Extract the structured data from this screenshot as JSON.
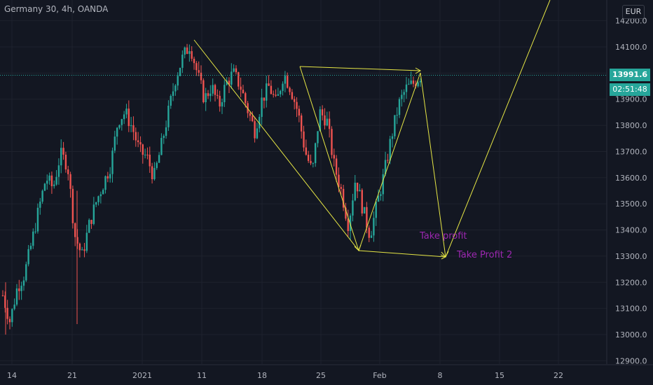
{
  "header": {
    "symbol_title": "Germany 30, 4h, OANDA",
    "currency": "EUR"
  },
  "price_scale": {
    "last_price": "13991.6",
    "countdown": "02:51:48"
  },
  "annotations": {
    "take_profit": "Take profit",
    "take_profit_2": "Take Profit 2"
  },
  "colors": {
    "background": "#131722",
    "up": "#26a69a",
    "down": "#ef5350",
    "drawing": "#e6e645",
    "text_purple": "#9c27b0",
    "axis_text": "#b2b5be",
    "last_price_line": "#26a69a"
  },
  "chart_data": {
    "type": "candlestick",
    "instrument": "Germany 30",
    "timeframe": "4h",
    "source": "OANDA",
    "y_ticks": [
      12900,
      13000,
      13100,
      13200,
      13300,
      13400,
      13500,
      13600,
      13700,
      13800,
      13900,
      14000,
      14100,
      14200
    ],
    "y_tick_labels": [
      "12900.0",
      "13000.0",
      "13100.0",
      "13200.0",
      "13300.0",
      "13400.0",
      "13500.0",
      "13600.0",
      "13700.0",
      "13800.0",
      "13900.0",
      "14000.0",
      "14100.0",
      "14200.0"
    ],
    "x_tick_labels": [
      "14",
      "21",
      "2021",
      "11",
      "18",
      "25",
      "Feb",
      "8",
      "15",
      "22"
    ],
    "ylim": [
      12890,
      14230
    ],
    "last_price": 13991.6,
    "path_close_points": [
      13150,
      13050,
      13180,
      13230,
      13350,
      13480,
      13600,
      13560,
      13690,
      13650,
      13380,
      13300,
      13420,
      13510,
      13580,
      13650,
      13820,
      13850,
      13790,
      13700,
      13680,
      13600,
      13720,
      13850,
      13980,
      14060,
      14110,
      14000,
      13900,
      13950,
      13870,
      13960,
      14000,
      13950,
      13860,
      13780,
      13900,
      13950,
      13880,
      14000,
      13940,
      13850,
      13700,
      13620,
      13850,
      13820,
      13650,
      13550,
      13420,
      13600,
      13480,
      13380,
      13500,
      13620,
      13760,
      13880,
      13940,
      13960,
      13990
    ]
  }
}
